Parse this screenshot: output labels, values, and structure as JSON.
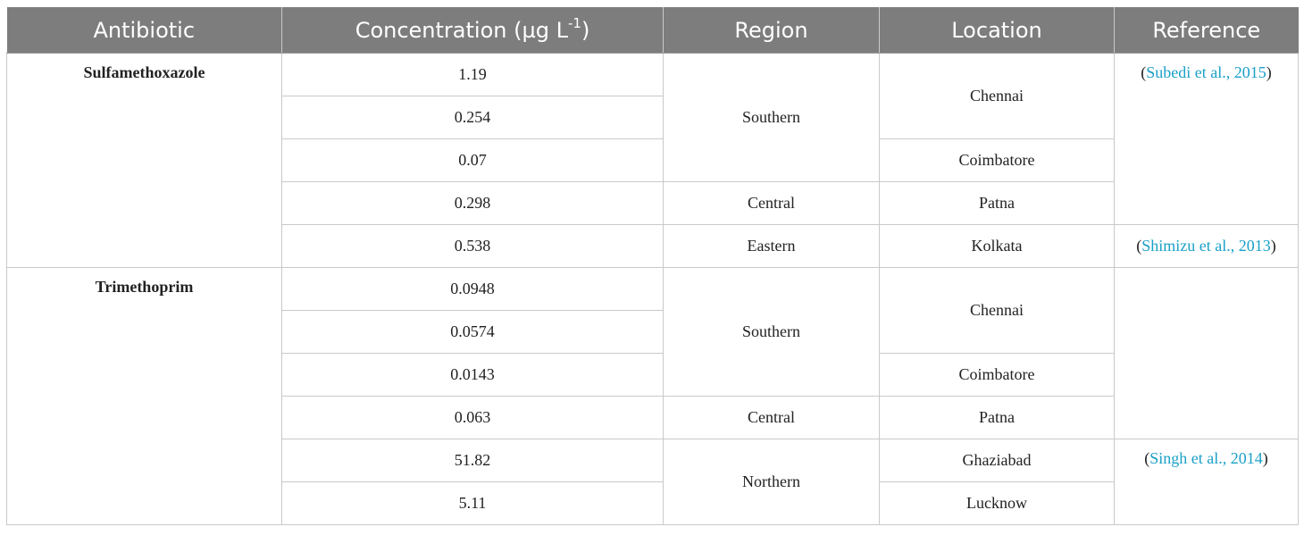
{
  "header": {
    "antibiotic": "Antibiotic",
    "concentration": "Concentration (µg L",
    "concentration_sup": "-1",
    "concentration_close": ")",
    "region": "Region",
    "location": "Location",
    "reference": "Reference"
  },
  "antibiotics": {
    "sulfamethoxazole": "Sulfamethoxazole",
    "trimethoprim": "Trimethoprim"
  },
  "concentrations": [
    "1.19",
    "0.254",
    "0.07",
    "0.298",
    "0.538",
    "0.0948",
    "0.0574",
    "0.0143",
    "0.063",
    "51.82",
    "5.11"
  ],
  "regions": {
    "southern_1": "Southern",
    "central_1": "Central",
    "eastern": "Eastern",
    "southern_2": "Southern",
    "central_2": "Central",
    "northern": "Northern"
  },
  "locations": {
    "chennai_1": "Chennai",
    "coimbatore_1": "Coimbatore",
    "patna_1": "Patna",
    "kolkata": "Kolkata",
    "chennai_2": "Chennai",
    "coimbatore_2": "Coimbatore",
    "patna_2": "Patna",
    "ghaziabad": "Ghaziabad",
    "lucknow": "Lucknow"
  },
  "references": {
    "subedi": {
      "open": "(",
      "link": "Subedi et al., 2015",
      "close": ")"
    },
    "shimizu": {
      "open": "(",
      "link": "Shimizu et al., 2013",
      "close": ")"
    },
    "singh": {
      "open": "(",
      "link": "Singh et al., 2014",
      "close": ")"
    }
  },
  "colors": {
    "header_bg": "#7d7d7d",
    "header_text": "#ffffff",
    "link": "#1aa0c8",
    "grid": "#c9c9c9"
  }
}
